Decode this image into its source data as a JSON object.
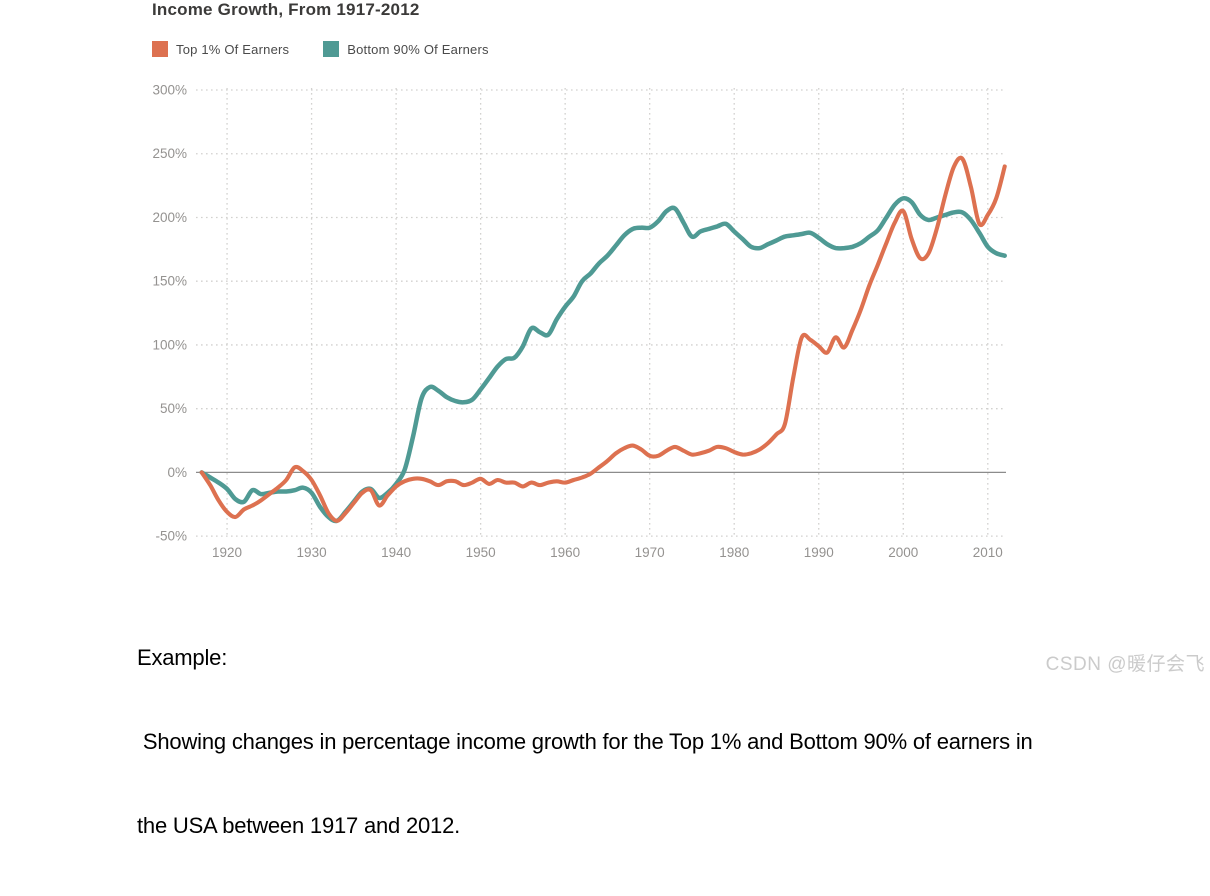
{
  "chart_data": {
    "type": "line",
    "title": "Income Growth, From 1917-2012",
    "xlabel": "",
    "ylabel": "",
    "xlim": [
      1917,
      2012
    ],
    "ylim": [
      -50,
      300
    ],
    "grid": "dotted",
    "legend_position": "top-left",
    "yticks": [
      {
        "value": 300,
        "label": "300%"
      },
      {
        "value": 250,
        "label": "250%"
      },
      {
        "value": 200,
        "label": "200%"
      },
      {
        "value": 150,
        "label": "150%"
      },
      {
        "value": 100,
        "label": "100%"
      },
      {
        "value": 50,
        "label": "50%"
      },
      {
        "value": 0,
        "label": "0%"
      },
      {
        "value": -50,
        "label": "-50%"
      }
    ],
    "xticks": [
      1920,
      1930,
      1940,
      1950,
      1960,
      1970,
      1980,
      1990,
      2000,
      2010
    ],
    "x": [
      1917,
      1918,
      1919,
      1920,
      1921,
      1922,
      1923,
      1924,
      1925,
      1926,
      1927,
      1928,
      1929,
      1930,
      1931,
      1932,
      1933,
      1934,
      1935,
      1936,
      1937,
      1938,
      1939,
      1940,
      1941,
      1942,
      1943,
      1944,
      1945,
      1946,
      1947,
      1948,
      1949,
      1950,
      1951,
      1952,
      1953,
      1954,
      1955,
      1956,
      1957,
      1958,
      1959,
      1960,
      1961,
      1962,
      1963,
      1964,
      1965,
      1966,
      1967,
      1968,
      1969,
      1970,
      1971,
      1972,
      1973,
      1974,
      1975,
      1976,
      1977,
      1978,
      1979,
      1980,
      1981,
      1982,
      1983,
      1984,
      1985,
      1986,
      1987,
      1988,
      1989,
      1990,
      1991,
      1992,
      1993,
      1994,
      1995,
      1996,
      1997,
      1998,
      1999,
      2000,
      2001,
      2002,
      2003,
      2004,
      2005,
      2006,
      2007,
      2008,
      2009,
      2010,
      2011,
      2012
    ],
    "series": [
      {
        "name": "Top 1% Of Earners",
        "color": "#dd7150",
        "values": [
          0,
          -10,
          -22,
          -31,
          -35,
          -29,
          -26,
          -22,
          -17,
          -12,
          -6,
          4,
          1,
          -6,
          -18,
          -32,
          -38,
          -32,
          -24,
          -16,
          -14,
          -26,
          -18,
          -11,
          -7,
          -5,
          -5,
          -7,
          -10,
          -7,
          -7,
          -10,
          -8,
          -5,
          -9,
          -6,
          -8,
          -8,
          -11,
          -8,
          -10,
          -8,
          -7,
          -8,
          -6,
          -4,
          -1,
          4,
          9,
          15,
          19,
          21,
          18,
          13,
          13,
          17,
          20,
          17,
          14,
          15,
          17,
          20,
          19,
          16,
          14,
          15,
          18,
          23,
          30,
          38,
          75,
          106,
          104,
          99,
          94,
          106,
          98,
          112,
          128,
          147,
          163,
          180,
          196,
          205,
          183,
          168,
          172,
          192,
          218,
          240,
          246,
          224,
          195,
          202,
          215,
          240
        ]
      },
      {
        "name": "Bottom 90% Of Earners",
        "color": "#4f9a94",
        "values": [
          0,
          -4,
          -8,
          -13,
          -21,
          -23,
          -14,
          -17,
          -16,
          -15,
          -15,
          -14,
          -12,
          -16,
          -27,
          -35,
          -38,
          -31,
          -23,
          -15,
          -13,
          -20,
          -16,
          -9,
          2,
          28,
          58,
          67,
          64,
          59,
          56,
          55,
          57,
          65,
          74,
          83,
          89,
          90,
          99,
          113,
          110,
          108,
          120,
          130,
          138,
          150,
          156,
          164,
          170,
          178,
          186,
          191,
          192,
          192,
          197,
          205,
          207,
          196,
          185,
          189,
          191,
          193,
          195,
          189,
          183,
          177,
          176,
          179,
          182,
          185,
          186,
          187,
          188,
          184,
          179,
          176,
          176,
          177,
          180,
          185,
          190,
          200,
          210,
          215,
          212,
          202,
          198,
          200,
          202,
          204,
          204,
          198,
          188,
          177,
          172,
          170
        ]
      }
    ]
  },
  "caption": {
    "line1": "Example:",
    "line2": " Showing changes in percentage income growth for the Top 1% and Bottom 90% of earners in",
    "line3": "the USA between 1917 and 2012."
  },
  "watermark": "CSDN @暖仔会飞"
}
